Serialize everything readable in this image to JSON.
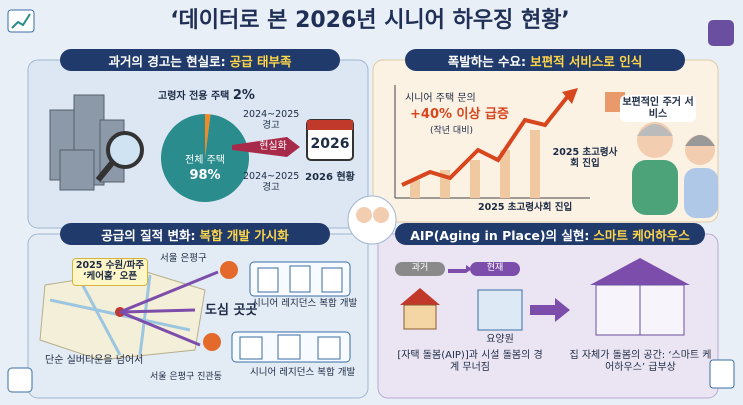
{
  "title": "‘데이터로 본 2026년 시니어 하우징 현황’",
  "panel1": {
    "heading": "과거의 경고는 현실로:",
    "highlight": "공급 태부족",
    "pie": {
      "labels": [
        "고령자 전용 주택",
        "전체 주택"
      ],
      "values": [
        2,
        98
      ],
      "value_labels": [
        "2%",
        "98%"
      ],
      "colors": [
        "#f08a24",
        "#2a8c8c"
      ]
    },
    "warning_top": "2024~2025 경고",
    "arrow": "현실화",
    "warning_bottom": "2024~2025 경고",
    "calendar": "2026",
    "result": "2026 현황"
  },
  "panel2": {
    "heading": "폭발하는 수요:",
    "highlight": "보편적 서비스로 인식",
    "inquiry": "시니어 주택 문의",
    "surge": "+40% 이상 급증",
    "compare": "(작년 대비)",
    "milestone": "2025 초고령사회 진입",
    "axis_note": "2025 초고령사회 진입",
    "bubble": "보편적인 주거 서비스"
  },
  "panel3": {
    "heading": "공급의 질적 변화:",
    "highlight": "복합 개발 가시화",
    "callout": "2025 수원/파주 ‘케어홈’ 오픈",
    "site1": "서울 은평구",
    "project1": "시니어 레지던스 복합 개발",
    "center": "도심 곳곳",
    "beyond": "단순 실버타운을 넘어서",
    "site2": "서울 은평구 진관동",
    "project2": "시니어 레지던스 복합 개발"
  },
  "panel4": {
    "heading": "AIP(Aging in Place)의 실현:",
    "highlight": "스마트 케어하우스",
    "past": "과거",
    "present": "현재",
    "facility": "요양원",
    "boundary": "[자택 돌봄(AIP)]과 시설 돌봄의 경계 무너짐",
    "smart": "집 자체가 돌봄의 공간: ‘스마트 케어하우스’ 급부상"
  }
}
